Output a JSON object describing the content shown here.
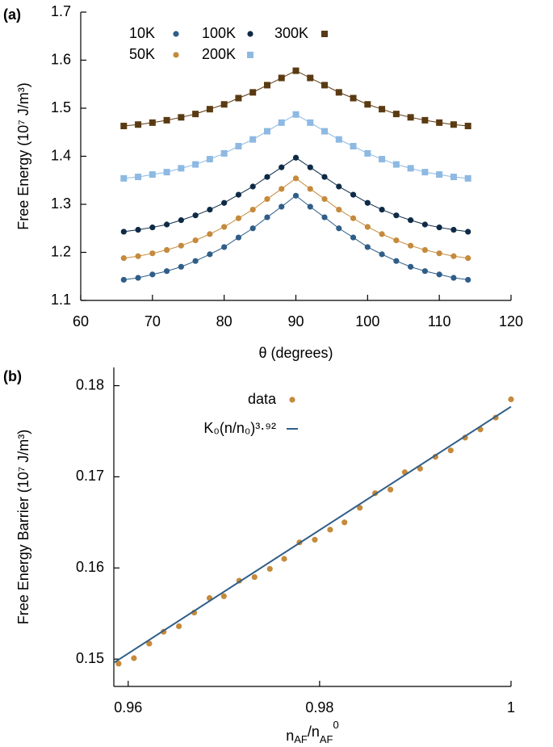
{
  "chart_data": [
    {
      "type": "line",
      "panel": "(a)",
      "xlabel": "θ (degrees)",
      "ylabel": "Free Energy (10⁷ J/m³)",
      "x": [
        66,
        68,
        70,
        72,
        74,
        76,
        78,
        80,
        82,
        84,
        86,
        88,
        90,
        92,
        94,
        96,
        98,
        100,
        102,
        104,
        106,
        108,
        110,
        112,
        114
      ],
      "series": [
        {
          "name": "10K",
          "color": "#2f5e88",
          "marker": "circle",
          "values": [
            1.143,
            1.147,
            1.154,
            1.161,
            1.17,
            1.182,
            1.196,
            1.211,
            1.231,
            1.25,
            1.273,
            1.295,
            1.318,
            1.295,
            1.273,
            1.25,
            1.231,
            1.211,
            1.196,
            1.182,
            1.17,
            1.161,
            1.154,
            1.147,
            1.143
          ]
        },
        {
          "name": "50K",
          "color": "#c58a3c",
          "marker": "circle",
          "values": [
            1.188,
            1.192,
            1.198,
            1.205,
            1.214,
            1.225,
            1.238,
            1.253,
            1.271,
            1.289,
            1.311,
            1.332,
            1.354,
            1.332,
            1.311,
            1.289,
            1.271,
            1.253,
            1.238,
            1.225,
            1.214,
            1.205,
            1.198,
            1.192,
            1.188
          ]
        },
        {
          "name": "100K",
          "color": "#0e2a46",
          "marker": "circle",
          "values": [
            1.243,
            1.247,
            1.252,
            1.258,
            1.267,
            1.277,
            1.289,
            1.303,
            1.32,
            1.337,
            1.357,
            1.377,
            1.397,
            1.377,
            1.357,
            1.337,
            1.32,
            1.303,
            1.289,
            1.277,
            1.267,
            1.258,
            1.252,
            1.247,
            1.243
          ]
        },
        {
          "name": "200K",
          "color": "#8db9e2",
          "marker": "square",
          "values": [
            1.354,
            1.357,
            1.362,
            1.367,
            1.375,
            1.383,
            1.394,
            1.406,
            1.421,
            1.435,
            1.452,
            1.47,
            1.487,
            1.47,
            1.452,
            1.435,
            1.421,
            1.406,
            1.394,
            1.383,
            1.375,
            1.367,
            1.362,
            1.357,
            1.354
          ]
        },
        {
          "name": "300K",
          "color": "#5a3a12",
          "marker": "square",
          "values": [
            1.463,
            1.466,
            1.47,
            1.475,
            1.481,
            1.488,
            1.498,
            1.508,
            1.521,
            1.533,
            1.548,
            1.563,
            1.578,
            1.563,
            1.548,
            1.533,
            1.521,
            1.508,
            1.498,
            1.488,
            1.481,
            1.475,
            1.47,
            1.466,
            1.463
          ]
        }
      ],
      "xlim": [
        60,
        120
      ],
      "xticks": [
        60,
        70,
        80,
        90,
        100,
        110,
        120
      ],
      "ylim": [
        1.1,
        1.7
      ],
      "yticks": [
        1.1,
        1.2,
        1.3,
        1.4,
        1.5,
        1.6,
        1.7
      ],
      "legend": "upper left"
    },
    {
      "type": "scatter",
      "panel": "(b)",
      "xlabel": [
        "n",
        "AF",
        "/n",
        "AF",
        "0"
      ],
      "ylabel": "Free Energy Barrier (10⁷ J/m³)",
      "series": [
        {
          "name": "data",
          "color": "#c58a3c",
          "marker": "circle",
          "x": [
            0.959,
            0.9606,
            0.9622,
            0.9637,
            0.9653,
            0.9669,
            0.9685,
            0.97,
            0.9716,
            0.9732,
            0.9748,
            0.9763,
            0.9779,
            0.9795,
            0.9811,
            0.9826,
            0.9842,
            0.9858,
            0.9874,
            0.9889,
            0.9905,
            0.9921,
            0.9937,
            0.9952,
            0.9968,
            0.9984,
            1.0
          ],
          "values": [
            0.1495,
            0.1501,
            0.1517,
            0.153,
            0.1536,
            0.1551,
            0.1567,
            0.1569,
            0.1586,
            0.159,
            0.1599,
            0.161,
            0.1628,
            0.1631,
            0.1642,
            0.165,
            0.1666,
            0.1682,
            0.1686,
            0.1705,
            0.1709,
            0.1722,
            0.1729,
            0.1743,
            0.1752,
            0.1765,
            0.1785
          ]
        },
        {
          "name": "K₀(n/n₀)³·⁹²",
          "color": "#2f5e88",
          "marker": "line",
          "x": [
            0.9585,
            1.0
          ],
          "values": [
            0.1496,
            0.1777
          ]
        }
      ],
      "xlim": [
        0.9585,
        1.0
      ],
      "xticks": [
        0.96,
        0.98,
        1
      ],
      "ylim": [
        0.147,
        0.182
      ],
      "yticks": [
        0.15,
        0.16,
        0.17,
        0.18
      ],
      "legend": "upper center"
    }
  ]
}
